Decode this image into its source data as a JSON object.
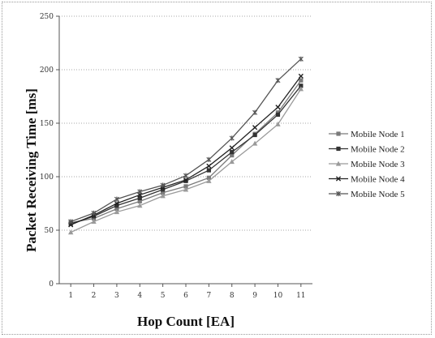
{
  "chart_data": {
    "type": "line",
    "title": "",
    "xlabel": "Hop Count [EA]",
    "ylabel": "Packet Receiving Time [ms]",
    "x": [
      1,
      2,
      3,
      4,
      5,
      6,
      7,
      8,
      9,
      10,
      11
    ],
    "ylim": [
      0,
      250
    ],
    "yticks": [
      0,
      50,
      100,
      150,
      200,
      250
    ],
    "grid": "horizontal-dotted",
    "legend_position": "right",
    "series": [
      {
        "name": "Mobile Node 1",
        "color": "#7a7a7a",
        "marker": "square",
        "values": [
          57,
          61,
          70,
          77,
          85,
          91,
          99,
          120,
          140,
          160,
          190
        ]
      },
      {
        "name": "Mobile Node 2",
        "color": "#333333",
        "marker": "square",
        "values": [
          56,
          63,
          73,
          80,
          88,
          96,
          106,
          123,
          139,
          158,
          185
        ]
      },
      {
        "name": "Mobile Node 3",
        "color": "#9a9a9a",
        "marker": "triangle",
        "values": [
          48,
          58,
          67,
          73,
          82,
          88,
          96,
          114,
          131,
          149,
          182
        ]
      },
      {
        "name": "Mobile Node 4",
        "color": "#222222",
        "marker": "x",
        "values": [
          55,
          64,
          75,
          83,
          90,
          97,
          110,
          127,
          146,
          165,
          194
        ]
      },
      {
        "name": "Mobile Node 5",
        "color": "#555555",
        "marker": "star",
        "values": [
          58,
          66,
          79,
          86,
          92,
          101,
          116,
          136,
          160,
          190,
          210
        ]
      }
    ]
  }
}
